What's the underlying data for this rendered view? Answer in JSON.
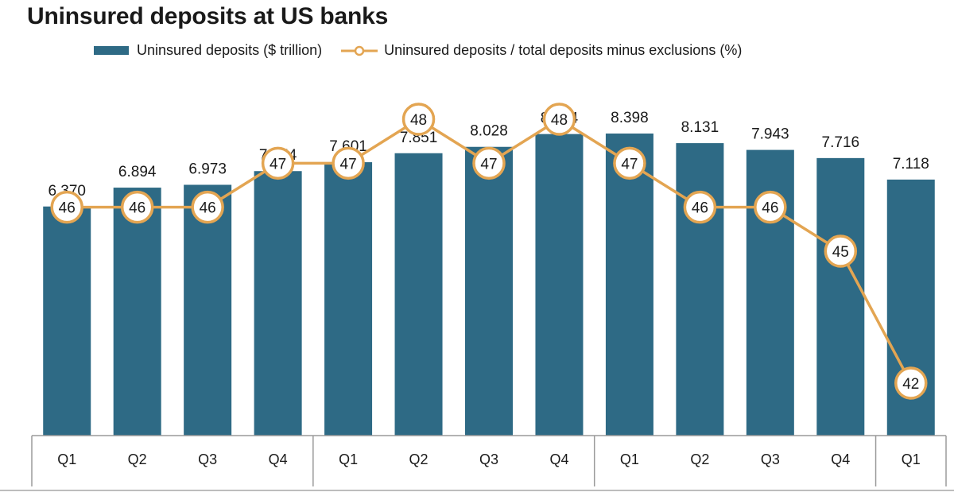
{
  "chart_data": {
    "type": "bar",
    "title": "Uninsured deposits at US banks",
    "categories": [
      "Q1",
      "Q2",
      "Q3",
      "Q4",
      "Q1",
      "Q2",
      "Q3",
      "Q4",
      "Q1",
      "Q2",
      "Q3",
      "Q4",
      "Q1"
    ],
    "series": [
      {
        "name": "Uninsured deposits ($ trillion)",
        "type": "bar",
        "values": [
          6.37,
          6.894,
          6.973,
          7.354,
          7.601,
          7.851,
          8.028,
          8.384,
          8.398,
          8.131,
          7.943,
          7.716,
          7.118
        ],
        "labels": [
          "6.370",
          "6.894",
          "6.973",
          "7.354",
          "7.601",
          "7.851",
          "8.028",
          "8.384",
          "8.398",
          "8.131",
          "7.943",
          "7.716",
          "7.118"
        ]
      },
      {
        "name": "Uninsured deposits / total deposits minus exclusions (%)",
        "type": "line",
        "values": [
          46,
          46,
          46,
          47,
          47,
          48,
          47,
          48,
          47,
          46,
          46,
          45,
          42
        ],
        "labels": [
          "46",
          "46",
          "46",
          "47",
          "47",
          "48",
          "47",
          "48",
          "47",
          "46",
          "46",
          "45",
          "42"
        ]
      }
    ],
    "year_groups": [
      {
        "label": "",
        "count": 4
      },
      {
        "label": "",
        "count": 4
      },
      {
        "label": "",
        "count": 4
      },
      {
        "label": "",
        "count": 1
      }
    ],
    "ylim_bar": [
      0,
      9.5
    ],
    "grid": false,
    "legend_position": "top",
    "colors": {
      "bar": "#2e6a85",
      "line": "#e3a552",
      "marker_fill": "#ffffff",
      "axis": "#9a9a9a",
      "text": "#1a1a1a"
    }
  }
}
